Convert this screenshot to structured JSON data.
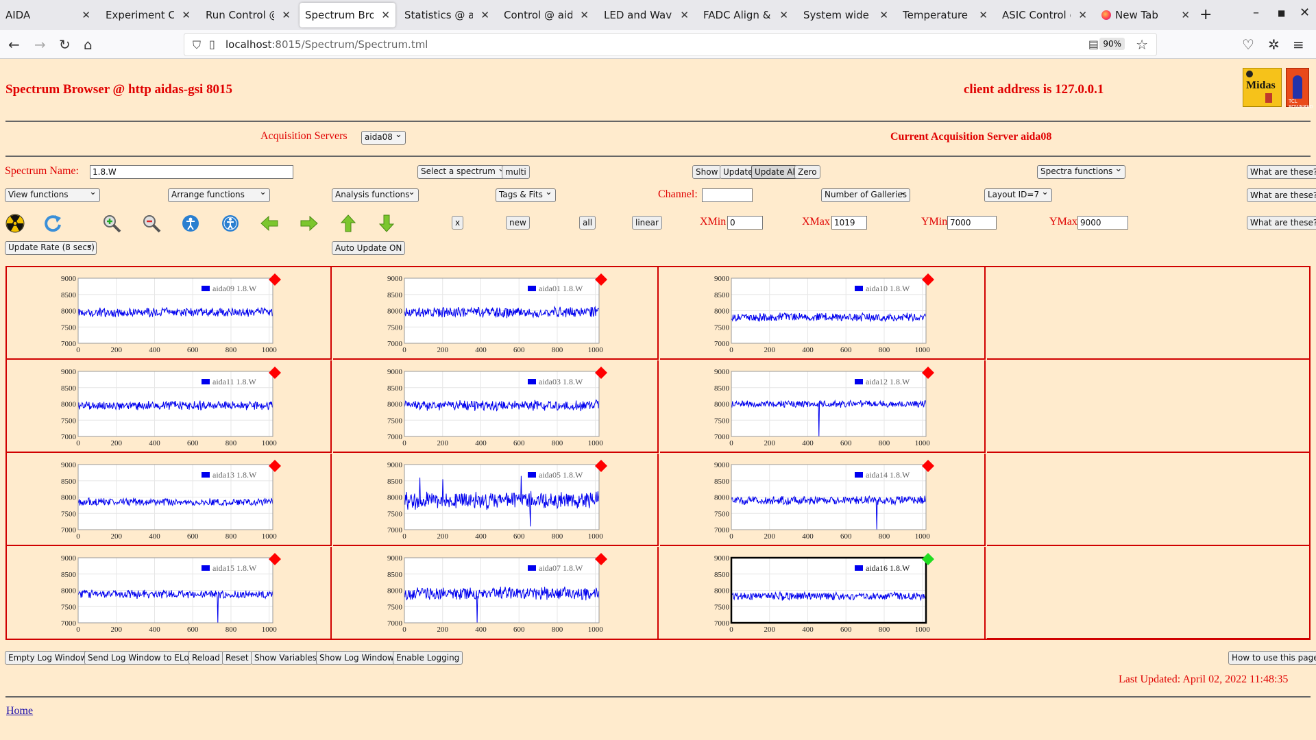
{
  "browser": {
    "tabs": [
      {
        "label": "AIDA",
        "active": false
      },
      {
        "label": "Experiment Cont",
        "active": false
      },
      {
        "label": "Run Control @ ai",
        "active": false
      },
      {
        "label": "Spectrum Brows",
        "active": true
      },
      {
        "label": "Statistics @ aida",
        "active": false
      },
      {
        "label": "Control @ aidas-",
        "active": false
      },
      {
        "label": "LED and Wavefor",
        "active": false
      },
      {
        "label": "FADC Align & Co",
        "active": false
      },
      {
        "label": "System wide Che",
        "active": false
      },
      {
        "label": "Temperature and",
        "active": false
      },
      {
        "label": "ASIC Control @ a",
        "active": false
      },
      {
        "label": "New Tab",
        "active": false
      }
    ],
    "url_host": "localhost",
    "url_rest": ":8015/Spectrum/Spectrum.tml",
    "zoom": "90%"
  },
  "header": {
    "title": "Spectrum Browser @ http aidas-gsi 8015",
    "client": "client address is 127.0.0.1",
    "logo_text": "Midas",
    "logo2_text": "TCL POWERED"
  },
  "servers": {
    "label": "Acquisition Servers",
    "selected": "aida08",
    "current": "Current Acquisition Server aida08"
  },
  "controls": {
    "spectrum_name_label": "Spectrum Name:",
    "spectrum_name_value": "1.8.W",
    "select_spectrum": "Select a spectrum",
    "multi": "multi",
    "show": "Show",
    "update": "Update",
    "update_all": "Update All",
    "zero": "Zero",
    "spectra_functions": "Spectra functions",
    "what_are_these": "What are these?",
    "view_functions": "View functions",
    "arrange_functions": "Arrange functions",
    "analysis_functions": "Analysis functions",
    "tags_fits": "Tags & Fits",
    "channel_label": "Channel:",
    "channel_value": "",
    "galleries": "Number of Galleries",
    "layout": "Layout ID=7",
    "x_btn": "x",
    "new_btn": "new",
    "all_btn": "all",
    "linear_btn": "linear",
    "xmin_label": "XMin",
    "xmin_value": "0",
    "xmax_label": "XMax",
    "xmax_value": "1019",
    "ymin_label": "YMin",
    "ymin_value": "7000",
    "ymax_label": "YMax",
    "ymax_value": "9000",
    "update_rate": "Update Rate (8 secs)",
    "auto_update": "Auto Update ON"
  },
  "toolbar_icons": [
    "radiation-icon",
    "refresh-icon",
    "zoom-in-icon",
    "zoom-out-icon",
    "accessibility-blue-icon",
    "accessibility-person-icon",
    "arrow-left-icon",
    "arrow-right-icon",
    "arrow-up-icon",
    "arrow-down-icon"
  ],
  "colors": {
    "line": "#0000ee",
    "marker_red": "#ff0000",
    "marker_green": "#22dd22",
    "grid_border": "#d00000"
  },
  "chart_data": [
    {
      "type": "line",
      "legend": "aida09 1.8.W",
      "baseline": 7950,
      "noise": 120,
      "spikes": [],
      "status": "red",
      "selected": false
    },
    {
      "type": "line",
      "legend": "aida01 1.8.W",
      "baseline": 7950,
      "noise": 140,
      "spikes": [],
      "status": "red",
      "selected": false
    },
    {
      "type": "line",
      "legend": "aida10 1.8.W",
      "baseline": 7800,
      "noise": 110,
      "spikes": [],
      "status": "red",
      "selected": false
    },
    {
      "type": "line",
      "legend": "aida11 1.8.W",
      "baseline": 7950,
      "noise": 120,
      "spikes": [],
      "status": "red",
      "selected": false
    },
    {
      "type": "line",
      "legend": "aida03 1.8.W",
      "baseline": 7950,
      "noise": 140,
      "spikes": [],
      "status": "red",
      "selected": false
    },
    {
      "type": "line",
      "legend": "aida12 1.8.W",
      "baseline": 8000,
      "noise": 90,
      "spikes": [
        [
          460,
          7000
        ]
      ],
      "status": "red",
      "selected": false
    },
    {
      "type": "line",
      "legend": "aida13 1.8.W",
      "baseline": 7850,
      "noise": 100,
      "spikes": [],
      "status": "red",
      "selected": false
    },
    {
      "type": "line",
      "legend": "aida05 1.8.W",
      "baseline": 7900,
      "noise": 230,
      "spikes": [
        [
          80,
          8600
        ],
        [
          200,
          8550
        ],
        [
          610,
          8650
        ],
        [
          660,
          7100
        ]
      ],
      "status": "red",
      "selected": false
    },
    {
      "type": "line",
      "legend": "aida14 1.8.W",
      "baseline": 7900,
      "noise": 110,
      "spikes": [
        [
          760,
          7000
        ]
      ],
      "status": "red",
      "selected": false
    },
    {
      "type": "line",
      "legend": "aida15 1.8.W",
      "baseline": 7880,
      "noise": 110,
      "spikes": [
        [
          730,
          7000
        ]
      ],
      "status": "red",
      "selected": false
    },
    {
      "type": "line",
      "legend": "aida07 1.8.W",
      "baseline": 7900,
      "noise": 170,
      "spikes": [
        [
          380,
          7000
        ]
      ],
      "status": "red",
      "selected": false
    },
    {
      "type": "line",
      "legend": "aida16 1.8.W",
      "baseline": 7820,
      "noise": 110,
      "spikes": [],
      "status": "green",
      "selected": true
    }
  ],
  "chart_axes": {
    "xlim": [
      0,
      1019
    ],
    "ylim": [
      7000,
      9000
    ],
    "xticks": [
      "0",
      "200",
      "400",
      "600",
      "800",
      "1000"
    ],
    "yticks": [
      "9000",
      "8500",
      "8000",
      "7500",
      "7000"
    ]
  },
  "bottom": {
    "empty_log": "Empty Log Window",
    "send_log": "Send Log Window to ELog",
    "reload": "Reload",
    "reset": "Reset",
    "show_vars": "Show Variables",
    "show_log": "Show Log Window",
    "enable_logging": "Enable Logging",
    "how_to": "How to use this page",
    "last_updated": "Last Updated: April 02, 2022 11:48:35",
    "home": "Home"
  }
}
